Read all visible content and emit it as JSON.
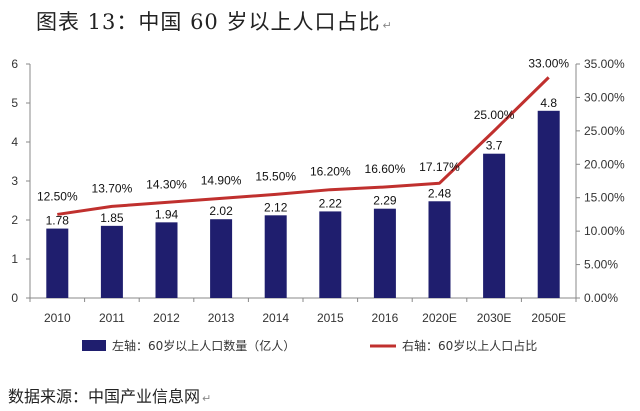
{
  "header": {
    "title": "图表 13：中国 60 岁以上人口占比",
    "mark": "↵"
  },
  "footer": {
    "source": "数据来源：中国产业信息网",
    "mark": "↵"
  },
  "colors": {
    "bar": "#1f1e6e",
    "line": "#c0302e",
    "axis": "#888888",
    "text": "#333333"
  },
  "chart_data": {
    "type": "bar+line",
    "title": "图表 13：中国 60 岁以上人口占比",
    "categories": [
      "2010",
      "2011",
      "2012",
      "2013",
      "2014",
      "2015",
      "2016",
      "2020E",
      "2030E",
      "2050E"
    ],
    "series": [
      {
        "name": "左轴：60岁以上人口数量（亿人）",
        "type": "bar",
        "axis": "left",
        "values": [
          1.78,
          1.85,
          1.94,
          2.02,
          2.12,
          2.22,
          2.29,
          2.48,
          3.7,
          4.8
        ],
        "labels": [
          "1.78",
          "1.85",
          "1.94",
          "2.02",
          "2.12",
          "2.22",
          "2.29",
          "2.48",
          "3.7",
          "4.8"
        ]
      },
      {
        "name": "右轴：60岁以上人口占比",
        "type": "line",
        "axis": "right",
        "values": [
          12.5,
          13.7,
          14.3,
          14.9,
          15.5,
          16.2,
          16.6,
          17.17,
          25.0,
          33.0
        ],
        "labels": [
          "12.50%",
          "13.70%",
          "14.30%",
          "14.90%",
          "15.50%",
          "16.20%",
          "16.60%",
          "17.17%",
          "25.00%",
          "33.00%"
        ]
      }
    ],
    "left_axis": {
      "min": 0,
      "max": 6,
      "ticks": [
        "0",
        "1",
        "2",
        "3",
        "4",
        "5",
        "6"
      ]
    },
    "right_axis": {
      "min": 0,
      "max": 35,
      "ticks": [
        "0.00%",
        "5.00%",
        "10.00%",
        "15.00%",
        "20.00%",
        "25.00%",
        "30.00%",
        "35.00%"
      ]
    },
    "legend": {
      "position": "bottom",
      "bar_label": "左轴：60岁以上人口数量（亿人）",
      "line_label": "右轴：60岁以上人口占比"
    },
    "grid": false
  }
}
